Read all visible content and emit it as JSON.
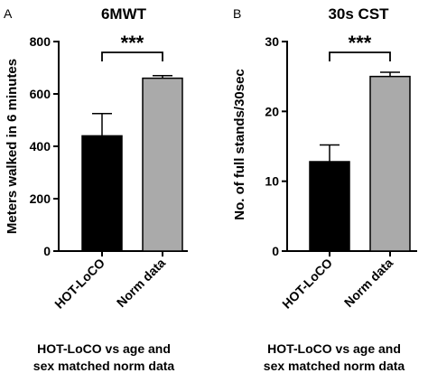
{
  "chart_data": [
    {
      "type": "bar",
      "panel": "A",
      "title": "6MWT",
      "ylabel": "Meters walked in 6 minutes",
      "xlabel": "HOT-LoCO vs age and sex matched norm data",
      "categories": [
        "HOT-LoCO",
        "Norm data"
      ],
      "values": [
        440,
        660
      ],
      "errors": [
        85,
        10
      ],
      "colors": [
        "#000000",
        "#aaaaaa"
      ],
      "ylim": [
        0,
        800
      ],
      "yticks": [
        "0",
        "200",
        "400",
        "600",
        "800"
      ],
      "significance": "***"
    },
    {
      "type": "bar",
      "panel": "B",
      "title": "30s CST",
      "ylabel": "No. of full stands/30sec",
      "xlabel": "HOT-LoCO vs age and sex matched norm data",
      "categories": [
        "HOT-LoCO",
        "Norm data"
      ],
      "values": [
        12.8,
        25
      ],
      "errors": [
        2.4,
        0.6
      ],
      "colors": [
        "#000000",
        "#aaaaaa"
      ],
      "ylim": [
        0,
        30
      ],
      "yticks": [
        "0",
        "10",
        "20",
        "30"
      ],
      "significance": "***"
    }
  ]
}
